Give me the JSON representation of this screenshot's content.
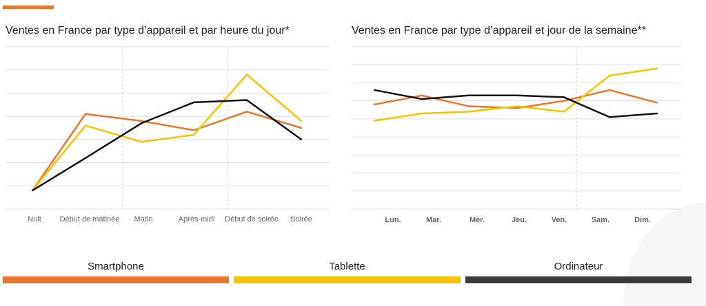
{
  "colors": {
    "smartphone": "#e8772e",
    "tablette": "#f5c400",
    "ordinateur": "#111111",
    "accent": "#e8772e",
    "grid": "#dddddd"
  },
  "legend": [
    {
      "label": "Smartphone",
      "color": "#e8772e"
    },
    {
      "label": "Tablette",
      "color": "#f5c400"
    },
    {
      "label": "Ordinateur",
      "color": "#3a3a3e"
    }
  ],
  "chart_data": [
    {
      "type": "line",
      "title": "Ventes en France par type d’appareil et par heure du jour*",
      "categories": [
        "Nuit",
        "Début de matinée",
        "Matin",
        "Après-midi",
        "Début de soirée",
        "Soirée"
      ],
      "ylim": [
        0,
        7
      ],
      "grid": true,
      "y_tick_labels": false,
      "series": [
        {
          "name": "Smartphone",
          "color": "#e8772e",
          "values": [
            0.8,
            4.1,
            3.8,
            3.4,
            4.2,
            3.5
          ]
        },
        {
          "name": "Tablette",
          "color": "#f5c400",
          "values": [
            0.8,
            3.6,
            2.9,
            3.2,
            5.8,
            3.8
          ]
        },
        {
          "name": "Ordinateur",
          "color": "#111111",
          "values": [
            0.8,
            2.2,
            3.7,
            4.6,
            4.7,
            3.0
          ]
        }
      ]
    },
    {
      "type": "line",
      "title": "Ventes en France par type d’appareil et jour de la semaine**",
      "categories": [
        "Lun.",
        "Mar.",
        "Mer.",
        "Jeu.",
        "Ven.",
        "Sam.",
        "Dim."
      ],
      "ylim": [
        0,
        9
      ],
      "grid": true,
      "y_tick_labels": false,
      "series": [
        {
          "name": "Smartphone",
          "color": "#e8772e",
          "values": [
            5.8,
            6.3,
            5.7,
            5.6,
            6.0,
            6.6,
            5.9
          ]
        },
        {
          "name": "Tablette",
          "color": "#f5c400",
          "values": [
            4.9,
            5.3,
            5.4,
            5.7,
            5.4,
            7.4,
            7.8
          ]
        },
        {
          "name": "Ordinateur",
          "color": "#111111",
          "values": [
            6.6,
            6.1,
            6.3,
            6.3,
            6.2,
            5.1,
            5.3
          ]
        }
      ]
    }
  ]
}
